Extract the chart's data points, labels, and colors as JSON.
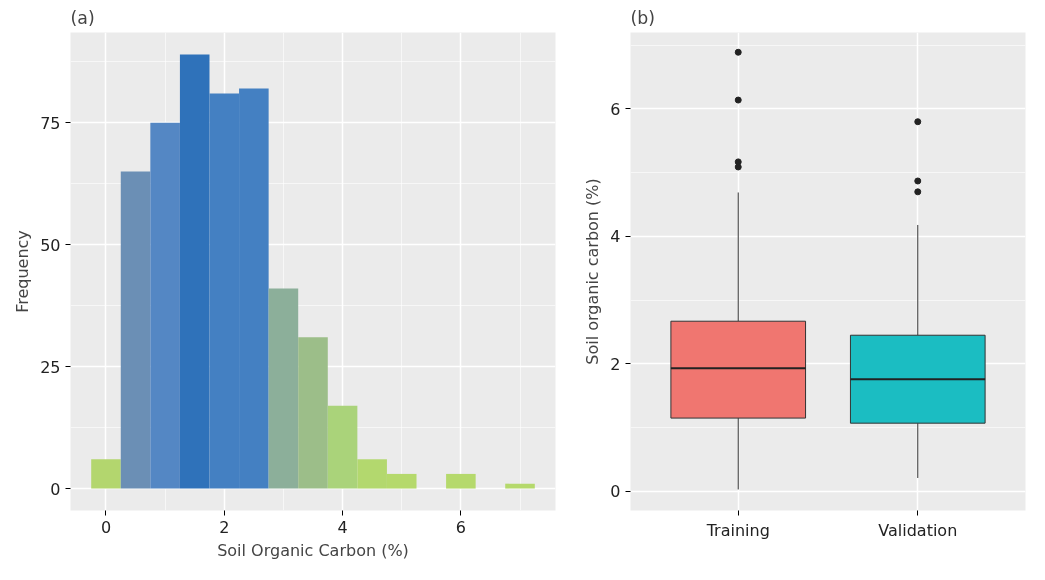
{
  "chart_data": [
    {
      "type": "histogram",
      "title": "(a)",
      "xlabel": "Soil Organic Carbon (%)",
      "ylabel": "Frequency",
      "bins": [
        -0.25,
        0.25,
        0.75,
        1.25,
        1.75,
        2.25,
        2.75,
        3.25,
        3.75,
        4.25,
        4.75,
        5.25,
        5.75,
        6.25,
        6.75,
        7.25
      ],
      "values": [
        6,
        65,
        75,
        89,
        81,
        82,
        41,
        31,
        17,
        6,
        3,
        0,
        3,
        0,
        1
      ],
      "colors": [
        "#b3d66e",
        "#6b8fb5",
        "#5487c4",
        "#2f72ba",
        "#4480c2",
        "#4480c2",
        "#8caf9a",
        "#9cbe89",
        "#aad37a",
        "#b3d86e",
        "#b5d96c",
        "#b5d96c",
        "#b5d96c",
        "#b5d96c",
        "#b5d96c"
      ],
      "xlim": [
        -0.6,
        7.6
      ],
      "ylim": [
        -4.5,
        93.5
      ],
      "xticks": [
        0,
        2,
        4,
        6
      ],
      "yticks": [
        0,
        25,
        50,
        75
      ],
      "grid": true
    },
    {
      "type": "box",
      "title": "(b)",
      "ylabel": "Soil organic carbon (%)",
      "categories": [
        "Training",
        "Validation"
      ],
      "boxes": [
        {
          "low": 0.03,
          "q1": 1.15,
          "median": 1.93,
          "q3": 2.67,
          "high": 4.69,
          "outliers": [
            6.89,
            6.14,
            5.17,
            5.09
          ]
        },
        {
          "low": 0.21,
          "q1": 1.07,
          "median": 1.76,
          "q3": 2.45,
          "high": 4.18,
          "outliers": [
            5.8,
            4.87,
            4.7
          ]
        }
      ],
      "colors": [
        "#f07670",
        "#1bbdc2"
      ],
      "ylim": [
        -0.3,
        7.2
      ],
      "yticks": [
        0,
        2,
        4,
        6
      ],
      "grid": true
    }
  ]
}
